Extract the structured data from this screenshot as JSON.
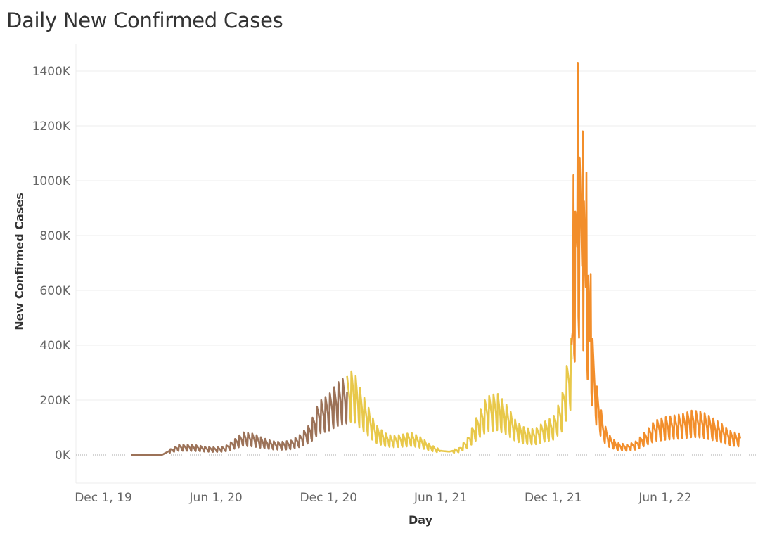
{
  "chart_data": {
    "type": "line",
    "title": "Daily New Confirmed Cases",
    "xlabel": "Day",
    "ylabel": "New Confirmed Cases",
    "ylim": [
      -100000,
      1500000
    ],
    "y_ticks": [
      {
        "value": 0,
        "label": "0K"
      },
      {
        "value": 200000,
        "label": "200K"
      },
      {
        "value": 400000,
        "label": "400K"
      },
      {
        "value": 600000,
        "label": "600K"
      },
      {
        "value": 800000,
        "label": "800K"
      },
      {
        "value": 1000000,
        "label": "1000K"
      },
      {
        "value": 1200000,
        "label": "1200K"
      },
      {
        "value": 1400000,
        "label": "1400K"
      }
    ],
    "x_ticks": [
      {
        "date": "2019-12-01",
        "label": "Dec 1, 19"
      },
      {
        "date": "2020-06-01",
        "label": "Jun 1, 20"
      },
      {
        "date": "2020-12-01",
        "label": "Dec 1, 20"
      },
      {
        "date": "2021-06-01",
        "label": "Jun 1, 21"
      },
      {
        "date": "2021-12-01",
        "label": "Dec 1, 21"
      },
      {
        "date": "2022-06-01",
        "label": "Jun 1, 22"
      }
    ],
    "xlim": [
      "2019-11-15",
      "2022-11-30"
    ],
    "grid": true,
    "series": [
      {
        "color": "#9c7258",
        "points": [
          [
            "2020-01-15",
            0
          ],
          [
            "2020-02-15",
            0
          ],
          [
            "2020-03-05",
            0
          ],
          [
            "2020-03-20",
            18000
          ],
          [
            "2020-04-01",
            30000
          ],
          [
            "2020-04-15",
            30000
          ],
          [
            "2020-05-01",
            28000
          ],
          [
            "2020-05-15",
            24000
          ],
          [
            "2020-06-01",
            22000
          ],
          [
            "2020-06-15",
            24000
          ],
          [
            "2020-07-01",
            45000
          ],
          [
            "2020-07-15",
            66000
          ],
          [
            "2020-08-01",
            62000
          ],
          [
            "2020-08-15",
            50000
          ],
          [
            "2020-09-01",
            40000
          ],
          [
            "2020-09-15",
            38000
          ],
          [
            "2020-10-01",
            42000
          ],
          [
            "2020-10-15",
            58000
          ],
          [
            "2020-11-01",
            90000
          ],
          [
            "2020-11-15",
            155000
          ],
          [
            "2020-12-01",
            175000
          ],
          [
            "2020-12-15",
            210000
          ],
          [
            "2020-12-31",
            230000
          ]
        ]
      },
      {
        "color": "#e8c84a",
        "points": [
          [
            "2020-12-31",
            230000
          ],
          [
            "2021-01-10",
            250000
          ],
          [
            "2021-01-20",
            200000
          ],
          [
            "2021-02-01",
            150000
          ],
          [
            "2021-02-15",
            90000
          ],
          [
            "2021-03-01",
            65000
          ],
          [
            "2021-03-15",
            55000
          ],
          [
            "2021-04-01",
            60000
          ],
          [
            "2021-04-15",
            65000
          ],
          [
            "2021-05-01",
            50000
          ],
          [
            "2021-05-15",
            30000
          ],
          [
            "2021-06-01",
            15000
          ],
          [
            "2021-06-15",
            12000
          ],
          [
            "2021-07-01",
            20000
          ],
          [
            "2021-07-15",
            50000
          ],
          [
            "2021-08-01",
            120000
          ],
          [
            "2021-08-15",
            170000
          ],
          [
            "2021-09-01",
            180000
          ],
          [
            "2021-09-15",
            150000
          ],
          [
            "2021-10-01",
            100000
          ],
          [
            "2021-10-15",
            80000
          ],
          [
            "2021-11-01",
            75000
          ],
          [
            "2021-11-15",
            95000
          ],
          [
            "2021-12-01",
            110000
          ],
          [
            "2021-12-15",
            170000
          ],
          [
            "2021-12-31",
            350000
          ]
        ]
      },
      {
        "color": "#f28e2b",
        "points": [
          [
            "2021-12-31",
            350000
          ],
          [
            "2022-01-05",
            680000
          ],
          [
            "2022-01-10",
            830000
          ],
          [
            "2022-01-14",
            880000
          ],
          [
            "2022-01-20",
            740000
          ],
          [
            "2022-01-25",
            580000
          ],
          [
            "2022-02-01",
            380000
          ],
          [
            "2022-02-10",
            200000
          ],
          [
            "2022-02-20",
            100000
          ],
          [
            "2022-03-01",
            60000
          ],
          [
            "2022-03-15",
            35000
          ],
          [
            "2022-04-01",
            30000
          ],
          [
            "2022-04-15",
            40000
          ],
          [
            "2022-05-01",
            70000
          ],
          [
            "2022-05-15",
            100000
          ],
          [
            "2022-06-01",
            110000
          ],
          [
            "2022-06-15",
            115000
          ],
          [
            "2022-07-01",
            120000
          ],
          [
            "2022-07-15",
            130000
          ],
          [
            "2022-08-01",
            125000
          ],
          [
            "2022-08-15",
            110000
          ],
          [
            "2022-09-01",
            90000
          ],
          [
            "2022-09-15",
            70000
          ],
          [
            "2022-10-01",
            60000
          ]
        ]
      }
    ]
  }
}
